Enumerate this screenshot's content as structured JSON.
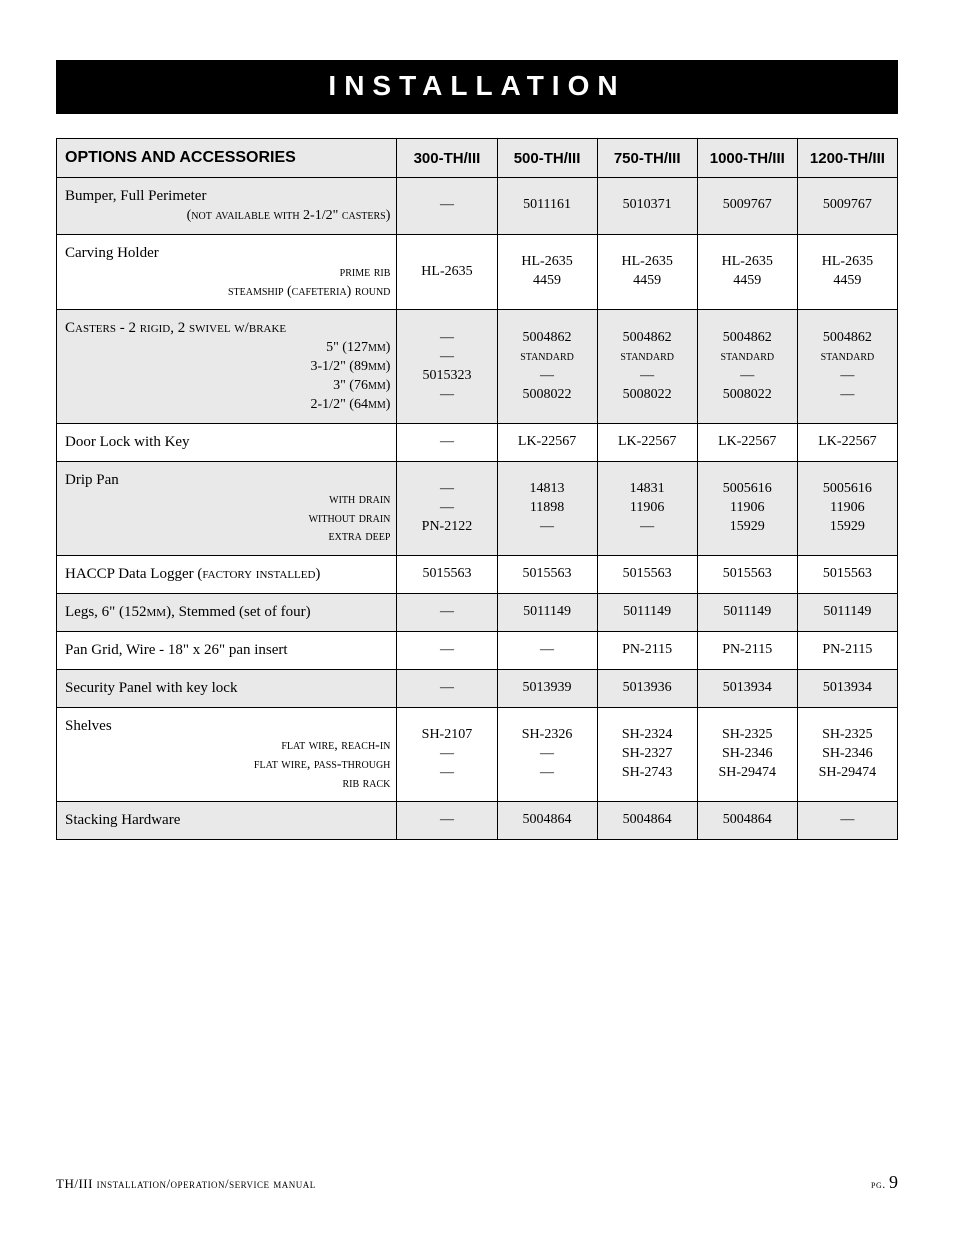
{
  "title": "INSTALLATION",
  "table": {
    "header_label": "OPTIONS AND ACCESSORIES",
    "columns": [
      "300-TH/III",
      "500-TH/III",
      "750-TH/III",
      "1000-TH/III",
      "1200-TH/III"
    ],
    "rows": [
      {
        "shade": true,
        "main": "Bumper, Full Perimeter",
        "subs": [
          "(not available with 2-1/2\" casters)"
        ],
        "cells": [
          [
            "—"
          ],
          [
            "5011161"
          ],
          [
            "5010371"
          ],
          [
            "5009767"
          ],
          [
            "5009767"
          ]
        ]
      },
      {
        "shade": false,
        "main": "Carving Holder",
        "subs": [
          "prime rib",
          "steamship (cafeteria) round"
        ],
        "cells": [
          [
            "HL-2635"
          ],
          [
            "HL-2635",
            "4459"
          ],
          [
            "HL-2635",
            "4459"
          ],
          [
            "HL-2635",
            "4459"
          ],
          [
            "HL-2635",
            "4459"
          ]
        ]
      },
      {
        "shade": true,
        "main": "Casters - 2 rigid, 2 swivel w/brake",
        "main_sc": true,
        "subs": [
          "5\" (127mm)",
          "3-1/2\" (89mm)",
          "3\" (76mm)",
          "2-1/2\" (64mm)"
        ],
        "cells": [
          [
            "—",
            "—",
            "5015323",
            "—"
          ],
          [
            "5004862",
            "standard",
            "—",
            "5008022"
          ],
          [
            "5004862",
            "standard",
            "—",
            "5008022"
          ],
          [
            "5004862",
            "standard",
            "—",
            "5008022"
          ],
          [
            "5004862",
            "standard",
            "—",
            "—"
          ]
        ]
      },
      {
        "shade": false,
        "main": "Door Lock with Key",
        "subs": [],
        "cells": [
          [
            "—"
          ],
          [
            "LK-22567"
          ],
          [
            "LK-22567"
          ],
          [
            "LK-22567"
          ],
          [
            "LK-22567"
          ]
        ]
      },
      {
        "shade": true,
        "main": "Drip Pan",
        "subs": [
          "with drain",
          "without drain",
          "extra deep"
        ],
        "cells": [
          [
            "—",
            "—",
            "PN-2122"
          ],
          [
            "14813",
            "11898",
            "—"
          ],
          [
            "14831",
            "11906",
            "—"
          ],
          [
            "5005616",
            "11906",
            "15929"
          ],
          [
            "5005616",
            "11906",
            "15929"
          ]
        ]
      },
      {
        "shade": false,
        "main": "HACCP Data Logger (factory installed)",
        "main_sc_partial": true,
        "subs": [],
        "cells": [
          [
            "5015563"
          ],
          [
            "5015563"
          ],
          [
            "5015563"
          ],
          [
            "5015563"
          ],
          [
            "5015563"
          ]
        ]
      },
      {
        "shade": true,
        "main": "Legs, 6\" (152mm), Stemmed (set of four)",
        "main_sc_partial": true,
        "subs": [],
        "cells": [
          [
            "—"
          ],
          [
            "5011149"
          ],
          [
            "5011149"
          ],
          [
            "5011149"
          ],
          [
            "5011149"
          ]
        ]
      },
      {
        "shade": false,
        "main": "Pan Grid, Wire - 18\" x 26\" pan insert",
        "main_sc_partial": true,
        "subs": [],
        "cells": [
          [
            "—"
          ],
          [
            "—"
          ],
          [
            "PN-2115"
          ],
          [
            "PN-2115"
          ],
          [
            "PN-2115"
          ]
        ]
      },
      {
        "shade": true,
        "main": "Security Panel with key lock",
        "subs": [],
        "cells": [
          [
            "—"
          ],
          [
            "5013939"
          ],
          [
            "5013936"
          ],
          [
            "5013934"
          ],
          [
            "5013934"
          ]
        ]
      },
      {
        "shade": false,
        "main": "Shelves",
        "subs": [
          "flat wire, reach-in",
          "flat wire, pass-through",
          "rib rack"
        ],
        "cells": [
          [
            "SH-2107",
            "—",
            "—"
          ],
          [
            "SH-2326",
            "—",
            "—"
          ],
          [
            "SH-2324",
            "SH-2327",
            "SH-2743"
          ],
          [
            "SH-2325",
            "SH-2346",
            "SH-29474"
          ],
          [
            "SH-2325",
            "SH-2346",
            "SH-29474"
          ]
        ]
      },
      {
        "shade": true,
        "main": "Stacking Hardware",
        "subs": [],
        "cells": [
          [
            "—"
          ],
          [
            "5004864"
          ],
          [
            "5004864"
          ],
          [
            "5004864"
          ],
          [
            "—"
          ]
        ]
      }
    ]
  },
  "footer": {
    "left": "TH/III installation/operation/service manual",
    "pg_label": "pg.",
    "pg_num": "9"
  },
  "colors": {
    "page_bg": "#ffffff",
    "title_bg": "#000000",
    "title_fg": "#ffffff",
    "row_shade": "#e9e9e9",
    "border": "#000000",
    "text": "#000000"
  }
}
